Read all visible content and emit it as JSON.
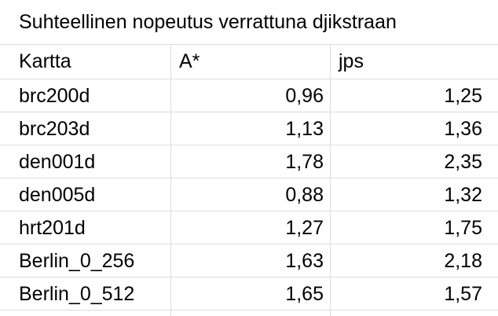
{
  "sheet": {
    "title": "Suhteellinen nopeutus verrattuna djikstraan",
    "headers": [
      "Kartta",
      "A*",
      "jps"
    ],
    "rows": [
      [
        "brc200d",
        "0,96",
        "1,25"
      ],
      [
        "brc203d",
        "1,13",
        "1,36"
      ],
      [
        "den001d",
        "1,78",
        "2,35"
      ],
      [
        "den005d",
        "0,88",
        "1,32"
      ],
      [
        "hrt201d",
        "1,27",
        "1,75"
      ],
      [
        "Berlin_0_256",
        "1,63",
        "2,18"
      ],
      [
        "Berlin_0_512",
        "1,65",
        "1,57"
      ]
    ]
  }
}
